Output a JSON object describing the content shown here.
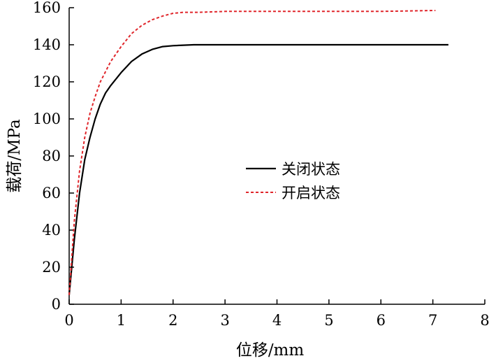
{
  "chart_data": {
    "type": "line",
    "title": "",
    "xlabel": "位移/mm",
    "ylabel": "载荷/MPa",
    "xlim": [
      0,
      8
    ],
    "ylim": [
      0,
      160
    ],
    "xticks": [
      0,
      1,
      2,
      3,
      4,
      5,
      6,
      7,
      8
    ],
    "yticks": [
      0,
      20,
      40,
      60,
      80,
      100,
      120,
      140,
      160
    ],
    "grid": false,
    "legend_position": "center-right",
    "series": [
      {
        "name": "关闭状态",
        "color": "#000000",
        "style": "solid",
        "x": [
          0,
          0.1,
          0.2,
          0.3,
          0.4,
          0.5,
          0.6,
          0.7,
          0.8,
          1.0,
          1.2,
          1.4,
          1.6,
          1.8,
          2.0,
          2.4,
          3.0,
          4.0,
          5.0,
          6.0,
          7.0,
          7.3
        ],
        "y": [
          5,
          35,
          60,
          78,
          90,
          100,
          108,
          114,
          118,
          125,
          131,
          135,
          137.5,
          139,
          139.5,
          140,
          140,
          140,
          140,
          140,
          140,
          140
        ]
      },
      {
        "name": "开启状态",
        "color": "#e0262b",
        "style": "dashed",
        "x": [
          0,
          0.1,
          0.2,
          0.3,
          0.4,
          0.5,
          0.6,
          0.8,
          1.0,
          1.2,
          1.4,
          1.6,
          1.8,
          2.0,
          2.2,
          2.5,
          3.0,
          3.5,
          4.0,
          5.0,
          6.0,
          7.0,
          7.05
        ],
        "y": [
          5,
          45,
          72,
          90,
          103,
          112,
          120,
          131,
          139,
          146,
          150.5,
          153.5,
          155.5,
          157,
          157.5,
          157.5,
          158,
          158,
          158,
          158,
          158,
          158.5,
          158.5
        ]
      }
    ]
  }
}
